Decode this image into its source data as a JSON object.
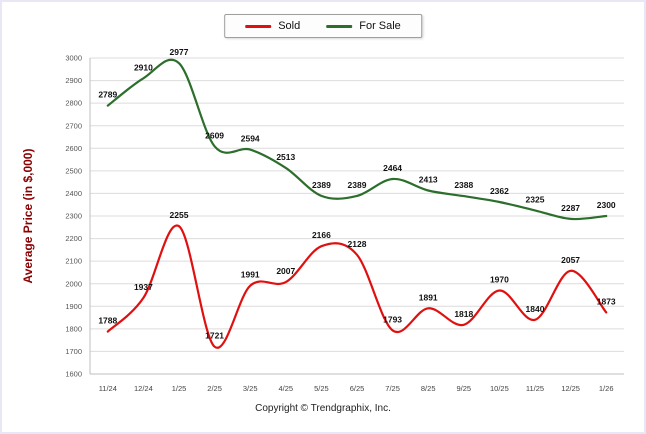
{
  "frame": {
    "copyright": "Copyright © Trendgraphix, Inc."
  },
  "chart_data": {
    "type": "line",
    "title": "",
    "xlabel": "",
    "ylabel": "Average Price (in $,000)",
    "ylim": [
      1600,
      3000
    ],
    "ytick_step": 100,
    "grid": true,
    "legend_position": "top-center",
    "x": [
      "11/24",
      "12/24",
      "1/25",
      "2/25",
      "3/25",
      "4/25",
      "5/25",
      "6/25",
      "7/25",
      "8/25",
      "9/25",
      "10/25",
      "11/25",
      "12/25",
      "1/26"
    ],
    "series": [
      {
        "name": "Sold",
        "color": "#e01010",
        "values": [
          1788,
          1937,
          2255,
          1721,
          1991,
          2007,
          2166,
          2128,
          1793,
          1891,
          1818,
          1970,
          1840,
          2057,
          1873
        ]
      },
      {
        "name": "For Sale",
        "color": "#2c6e2c",
        "values": [
          2789,
          2910,
          2977,
          2609,
          2594,
          2513,
          2389,
          2389,
          2464,
          2413,
          2388,
          2362,
          2325,
          2287,
          2300
        ]
      }
    ]
  }
}
